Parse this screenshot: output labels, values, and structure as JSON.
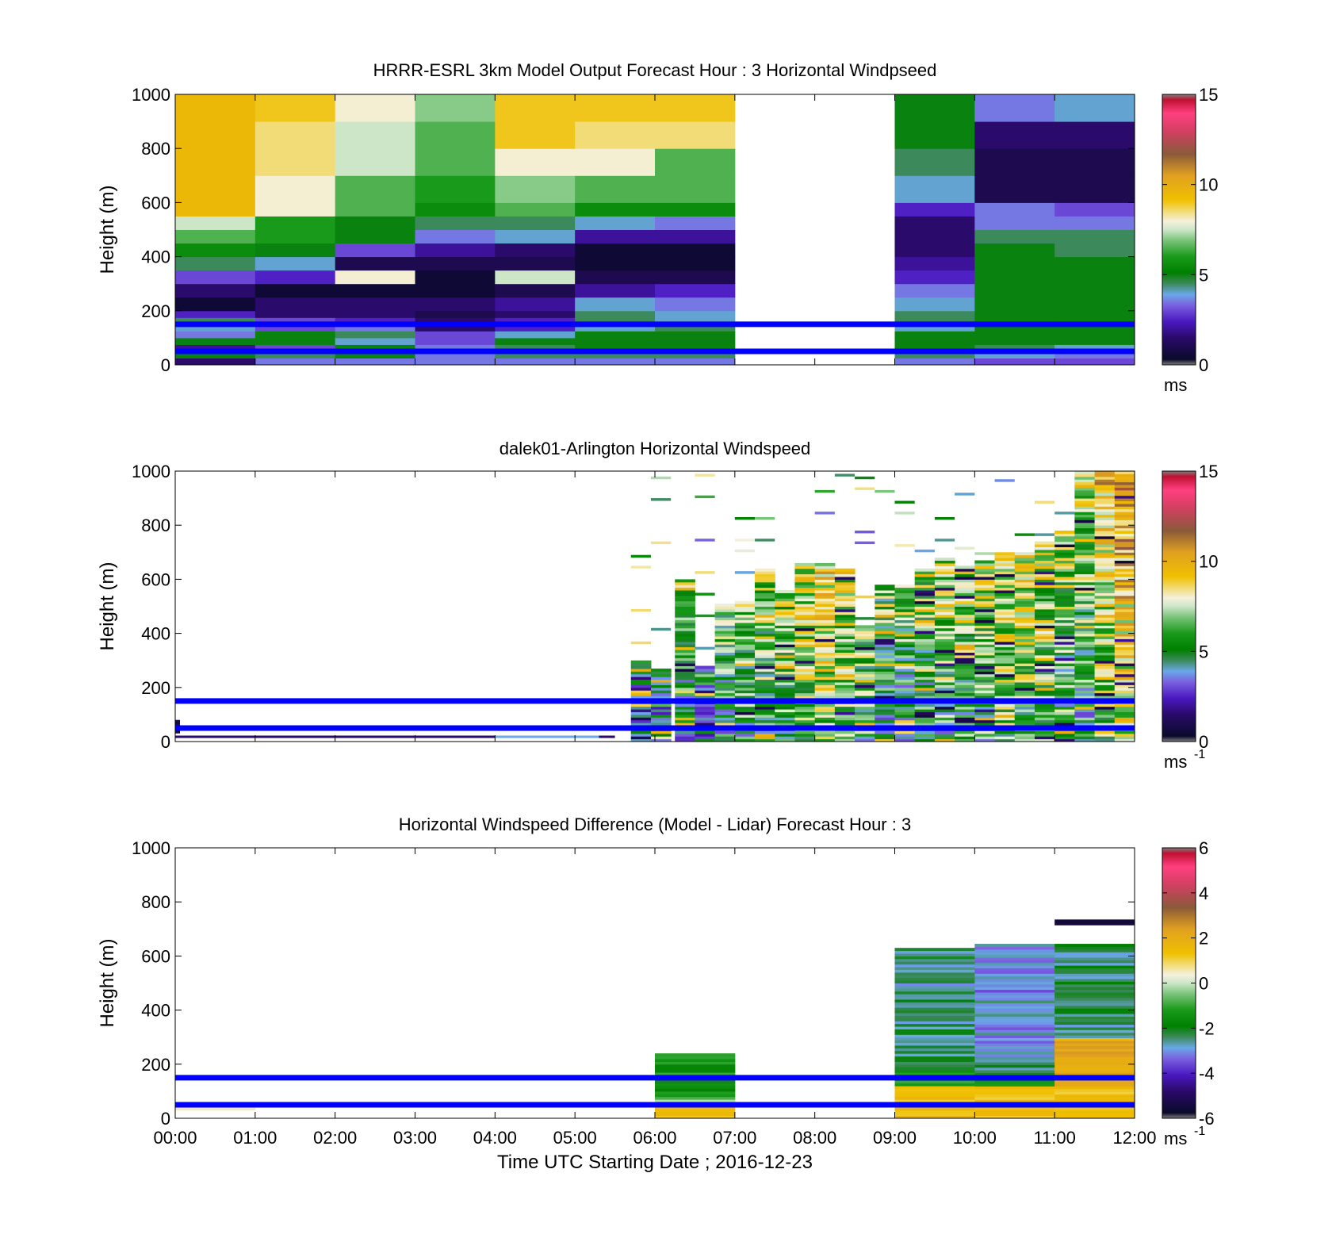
{
  "chart_data": [
    {
      "type": "heatmap",
      "title": "HRRR-ESRL 3km Model Output   Forecast Hour : 3 Horizontal Windpseed",
      "ylabel": "Height (m)",
      "xlabel": "",
      "ylim": [
        0,
        1000
      ],
      "y_ticks": [
        "0",
        "200",
        "400",
        "600",
        "800",
        "1000"
      ],
      "x_ticks": [],
      "colorbar": {
        "ticks": [
          "0",
          "5",
          "10",
          "15"
        ],
        "vmin": 0,
        "vmax": 15,
        "unit_base": "ms",
        "unit_exp": ""
      },
      "reference_lines_m": [
        150,
        50
      ],
      "x_range_hours": [
        0,
        12
      ],
      "layers_m": [
        0,
        25,
        50,
        75,
        100,
        125,
        150,
        175,
        200,
        250,
        300,
        350,
        400,
        450,
        500,
        550,
        600,
        700,
        800,
        900,
        1000
      ],
      "hour_columns": [
        {
          "hour": 0,
          "values": [
            1.5,
            5.0,
            2.0,
            5.0,
            3.5,
            4.0,
            4.5,
            2.5,
            0.5,
            1.5,
            3.0,
            4.5,
            5.5,
            6.5,
            7.5,
            9.5,
            9.5,
            9.5,
            9.5,
            9.5
          ]
        },
        {
          "hour": 1,
          "values": [
            3.5,
            4.5,
            3.0,
            5.0,
            5.0,
            3.0,
            3.0,
            1.5,
            1.5,
            0.5,
            2.5,
            4.0,
            5.0,
            6.0,
            6.0,
            8.0,
            8.0,
            8.5,
            8.5,
            9.0
          ]
        },
        {
          "hour": 2,
          "values": [
            3.5,
            5.0,
            5.0,
            4.0,
            4.5,
            3.5,
            2.5,
            1.5,
            1.5,
            0.5,
            8.0,
            1.0,
            3.0,
            5.0,
            5.0,
            6.5,
            6.5,
            7.5,
            7.5,
            8.0
          ]
        },
        {
          "hour": 3,
          "values": [
            3.5,
            3.5,
            3.5,
            3.0,
            3.0,
            1.5,
            1.5,
            1.0,
            1.5,
            0.5,
            0.5,
            1.0,
            2.0,
            3.5,
            4.5,
            5.5,
            6.0,
            6.5,
            6.5,
            7.0
          ]
        },
        {
          "hour": 4,
          "values": [
            3.5,
            4.5,
            4.5,
            5.0,
            4.0,
            2.5,
            2.5,
            1.5,
            2.0,
            1.0,
            7.5,
            1.0,
            1.5,
            4.0,
            4.5,
            6.5,
            7.0,
            8.0,
            9.0,
            9.0
          ]
        },
        {
          "hour": 5,
          "values": [
            3.5,
            4.5,
            5.0,
            5.0,
            5.0,
            4.0,
            4.5,
            4.5,
            4.0,
            2.0,
            1.0,
            0.5,
            0.5,
            2.0,
            4.0,
            5.5,
            6.5,
            8.0,
            8.5,
            9.0
          ]
        },
        {
          "hour": 6,
          "values": [
            3.5,
            4.5,
            5.0,
            5.0,
            5.0,
            4.5,
            4.0,
            4.0,
            3.5,
            2.5,
            1.0,
            0.5,
            0.5,
            2.0,
            3.5,
            5.5,
            6.5,
            6.5,
            8.5,
            9.0
          ]
        },
        {
          "hour": 7,
          "values": [
            null,
            null,
            null,
            null,
            null,
            null,
            null,
            null,
            null,
            null,
            null,
            null,
            null,
            null,
            null,
            null,
            null,
            null,
            null,
            null
          ]
        },
        {
          "hour": 8,
          "values": [
            null,
            null,
            null,
            null,
            null,
            null,
            null,
            null,
            null,
            null,
            null,
            null,
            null,
            null,
            null,
            null,
            null,
            null,
            null,
            null
          ]
        },
        {
          "hour": 9,
          "values": [
            3.5,
            4.5,
            5.0,
            5.0,
            5.0,
            4.0,
            4.5,
            4.5,
            4.0,
            3.5,
            2.5,
            2.0,
            1.5,
            1.5,
            1.5,
            2.5,
            4.0,
            4.5,
            5.0,
            5.0
          ]
        },
        {
          "hour": 10,
          "values": [
            3.0,
            4.0,
            4.5,
            5.0,
            5.0,
            5.0,
            5.0,
            5.0,
            5.0,
            5.0,
            5.0,
            5.0,
            5.0,
            4.5,
            3.5,
            3.5,
            1.0,
            1.0,
            1.5,
            3.5
          ]
        },
        {
          "hour": 11,
          "values": [
            3.0,
            3.5,
            4.0,
            5.0,
            5.0,
            5.0,
            5.0,
            5.0,
            5.0,
            5.0,
            5.0,
            5.0,
            4.5,
            4.5,
            3.5,
            3.0,
            1.0,
            1.0,
            1.5,
            4.0
          ]
        }
      ]
    },
    {
      "type": "heatmap",
      "title": "dalek01-Arlington  Horizontal Windspeed",
      "ylabel": "Height (m)",
      "xlabel": "",
      "ylim": [
        0,
        1000
      ],
      "y_ticks": [
        "0",
        "200",
        "400",
        "600",
        "800",
        "1000"
      ],
      "x_ticks": [],
      "colorbar": {
        "ticks": [
          "0",
          "5",
          "10",
          "15"
        ],
        "vmin": 0,
        "vmax": 15,
        "unit_base": "ms",
        "unit_exp": "-1"
      },
      "reference_lines_m": [
        150,
        50
      ],
      "x_range_hours": [
        0,
        12
      ],
      "profiles": [
        {
          "t": 5.7,
          "top": 300,
          "base": 3.0
        },
        {
          "t": 5.95,
          "top": 270,
          "base": 4.0
        },
        {
          "t": 6.25,
          "top": 600,
          "base": 4.5
        },
        {
          "t": 6.5,
          "top": 280,
          "base": 4.2
        },
        {
          "t": 6.75,
          "top": 510,
          "base": 5.0
        },
        {
          "t": 7.0,
          "top": 520,
          "base": 5.4
        },
        {
          "t": 7.25,
          "top": 640,
          "base": 5.3
        },
        {
          "t": 7.5,
          "top": 560,
          "base": 5.7
        },
        {
          "t": 7.75,
          "top": 660,
          "base": 6.2
        },
        {
          "t": 8.0,
          "top": 660,
          "base": 6.8
        },
        {
          "t": 8.25,
          "top": 640,
          "base": 6.0
        },
        {
          "t": 8.5,
          "top": 430,
          "base": 5.5
        },
        {
          "t": 8.75,
          "top": 580,
          "base": 4.6
        },
        {
          "t": 9.0,
          "top": 580,
          "base": 4.8
        },
        {
          "t": 9.25,
          "top": 640,
          "base": 5.0
        },
        {
          "t": 9.5,
          "top": 680,
          "base": 5.3
        },
        {
          "t": 9.75,
          "top": 650,
          "base": 5.5
        },
        {
          "t": 10.0,
          "top": 670,
          "base": 5.6
        },
        {
          "t": 10.25,
          "top": 700,
          "base": 6.2
        },
        {
          "t": 10.5,
          "top": 700,
          "base": 6.0
        },
        {
          "t": 10.75,
          "top": 740,
          "base": 5.6
        },
        {
          "t": 11.0,
          "top": 780,
          "base": 5.0
        },
        {
          "t": 11.25,
          "top": 1000,
          "base": 4.8
        },
        {
          "t": 11.5,
          "top": 1000,
          "base": 6.5
        },
        {
          "t": 11.75,
          "top": 1000,
          "base": 7.5
        }
      ]
    },
    {
      "type": "heatmap",
      "title": "Horizontal Windspeed Difference (Model - Lidar) Forecast Hour : 3",
      "xlabel": "Time UTC  Starting Date ; 2016-12-23",
      "ylabel": "Height (m)",
      "ylim": [
        0,
        1000
      ],
      "y_ticks": [
        "0",
        "200",
        "400",
        "600",
        "800",
        "1000"
      ],
      "x_ticks": [
        "00:00",
        "01:00",
        "02:00",
        "03:00",
        "04:00",
        "05:00",
        "06:00",
        "07:00",
        "08:00",
        "09:00",
        "10:00",
        "11:00",
        "12:00"
      ],
      "colorbar": {
        "ticks": [
          "-6",
          "-4",
          "-2",
          "0",
          "2",
          "4",
          "6"
        ],
        "vmin": -6,
        "vmax": 6,
        "unit_base": "ms",
        "unit_exp": "-1"
      },
      "reference_lines_m": [
        150,
        50
      ],
      "x_range_hours": [
        0,
        12
      ],
      "blocks": [
        {
          "hour": 0,
          "y0": 30,
          "y1": 45,
          "value": 0.5
        },
        {
          "hour": 6,
          "y0": 0,
          "y1": 240,
          "value": -1.5
        },
        {
          "hour": 9,
          "y0": 0,
          "y1": 630,
          "value": -2.5
        },
        {
          "hour": 10,
          "y0": 0,
          "y1": 645,
          "value": -3.0
        },
        {
          "hour": 11,
          "y0": 0,
          "y1": 645,
          "value": -2.5
        },
        {
          "hour": 11,
          "y0": 715,
          "y1": 735,
          "value": -5.5
        }
      ]
    }
  ],
  "colors": {
    "reference_line": "#0000ff",
    "axes": "#000000"
  }
}
